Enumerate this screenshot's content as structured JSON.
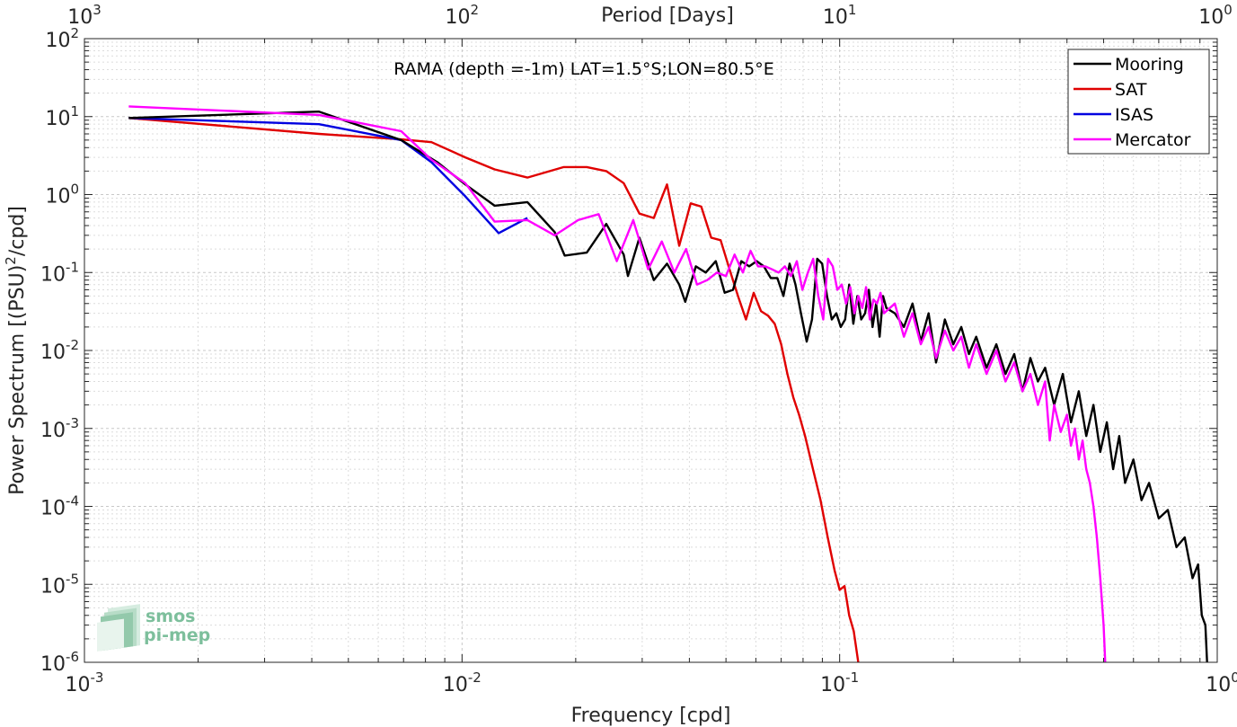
{
  "chart_data": {
    "type": "line",
    "xscale": "log",
    "yscale": "log",
    "xlim": [
      0.001,
      1
    ],
    "ylim": [
      1e-06,
      100
    ],
    "xlabel": "Frequency [cpd]",
    "ylabel": "Power Spectrum [(PSU)²/cpd]",
    "ylabel_base": "Power Spectrum [(PSU)",
    "ylabel_sup": "2",
    "ylabel_tail": "/cpd]",
    "x2label": "Period [Days]",
    "x2lim": [
      1000,
      1
    ],
    "annotation": "RAMA (depth =-1m) LAT=1.5°S;LON=80.5°E",
    "grid": true,
    "minor_grid": true,
    "legend_position": "top-right",
    "xticks": [
      {
        "value": 0.001,
        "base": "10",
        "exp": "-3"
      },
      {
        "value": 0.01,
        "base": "10",
        "exp": "-2"
      },
      {
        "value": 0.1,
        "base": "10",
        "exp": "-1"
      },
      {
        "value": 1,
        "base": "10",
        "exp": "0"
      }
    ],
    "x2ticks": [
      {
        "value": 1000,
        "base": "10",
        "exp": "3"
      },
      {
        "value": 100,
        "base": "10",
        "exp": "2"
      },
      {
        "value": 10,
        "base": "10",
        "exp": "1"
      },
      {
        "value": 1,
        "base": "10",
        "exp": "0"
      }
    ],
    "yticks": [
      {
        "value": 100,
        "base": "10",
        "exp": "2"
      },
      {
        "value": 10,
        "base": "10",
        "exp": "1"
      },
      {
        "value": 1,
        "base": "10",
        "exp": "0"
      },
      {
        "value": 0.1,
        "base": "10",
        "exp": "-1"
      },
      {
        "value": 0.01,
        "base": "10",
        "exp": "-2"
      },
      {
        "value": 0.001,
        "base": "10",
        "exp": "-3"
      },
      {
        "value": 0.0001,
        "base": "10",
        "exp": "-4"
      },
      {
        "value": 1e-05,
        "base": "10",
        "exp": "-5"
      },
      {
        "value": 1e-06,
        "base": "10",
        "exp": "-6"
      }
    ],
    "series": [
      {
        "name": "Mooring",
        "color": "#000000",
        "points": [
          [
            0.00131,
            9.6
          ],
          [
            0.00418,
            11.6
          ],
          [
            0.0069,
            5.0
          ],
          [
            0.0086,
            2.6
          ],
          [
            0.0102,
            1.35
          ],
          [
            0.0122,
            0.72
          ],
          [
            0.0149,
            0.8
          ],
          [
            0.0176,
            0.33
          ],
          [
            0.0187,
            0.165
          ],
          [
            0.0214,
            0.18
          ],
          [
            0.0241,
            0.42
          ],
          [
            0.0268,
            0.17
          ],
          [
            0.0275,
            0.09
          ],
          [
            0.0295,
            0.28
          ],
          [
            0.0322,
            0.08
          ],
          [
            0.0349,
            0.13
          ],
          [
            0.0376,
            0.07
          ],
          [
            0.039,
            0.042
          ],
          [
            0.0416,
            0.12
          ],
          [
            0.0442,
            0.1
          ],
          [
            0.047,
            0.14
          ],
          [
            0.0496,
            0.055
          ],
          [
            0.0522,
            0.06
          ],
          [
            0.0549,
            0.14
          ],
          [
            0.0576,
            0.12
          ],
          [
            0.0603,
            0.14
          ],
          [
            0.063,
            0.12
          ],
          [
            0.0657,
            0.085
          ],
          [
            0.0684,
            0.085
          ],
          [
            0.071,
            0.05
          ],
          [
            0.0737,
            0.13
          ],
          [
            0.0764,
            0.07
          ],
          [
            0.079,
            0.03
          ],
          [
            0.0818,
            0.013
          ],
          [
            0.0845,
            0.025
          ],
          [
            0.0872,
            0.15
          ],
          [
            0.0899,
            0.13
          ],
          [
            0.0926,
            0.05
          ],
          [
            0.0953,
            0.025
          ],
          [
            0.098,
            0.03
          ],
          [
            0.1007,
            0.02
          ],
          [
            0.1034,
            0.025
          ],
          [
            0.106,
            0.07
          ],
          [
            0.1087,
            0.022
          ],
          [
            0.1114,
            0.05
          ],
          [
            0.1141,
            0.025
          ],
          [
            0.1168,
            0.03
          ],
          [
            0.1195,
            0.06
          ],
          [
            0.1222,
            0.02
          ],
          [
            0.1249,
            0.04
          ],
          [
            0.1276,
            0.015
          ],
          [
            0.1303,
            0.05
          ],
          [
            0.133,
            0.035
          ],
          [
            0.14,
            0.03
          ],
          [
            0.148,
            0.02
          ],
          [
            0.156,
            0.04
          ],
          [
            0.164,
            0.013
          ],
          [
            0.172,
            0.03
          ],
          [
            0.18,
            0.007
          ],
          [
            0.19,
            0.025
          ],
          [
            0.2,
            0.012
          ],
          [
            0.21,
            0.02
          ],
          [
            0.22,
            0.009
          ],
          [
            0.23,
            0.015
          ],
          [
            0.245,
            0.006
          ],
          [
            0.26,
            0.012
          ],
          [
            0.275,
            0.005
          ],
          [
            0.29,
            0.009
          ],
          [
            0.305,
            0.003
          ],
          [
            0.32,
            0.008
          ],
          [
            0.335,
            0.004
          ],
          [
            0.35,
            0.006
          ],
          [
            0.37,
            0.002
          ],
          [
            0.39,
            0.005
          ],
          [
            0.41,
            0.0012
          ],
          [
            0.43,
            0.003
          ],
          [
            0.45,
            0.0008
          ],
          [
            0.47,
            0.002
          ],
          [
            0.49,
            0.0005
          ],
          [
            0.51,
            0.0012
          ],
          [
            0.53,
            0.0003
          ],
          [
            0.55,
            0.0008
          ],
          [
            0.57,
            0.0002
          ],
          [
            0.6,
            0.0004
          ],
          [
            0.63,
            0.00012
          ],
          [
            0.66,
            0.0002
          ],
          [
            0.7,
            7e-05
          ],
          [
            0.74,
            9e-05
          ],
          [
            0.78,
            3e-05
          ],
          [
            0.82,
            4e-05
          ],
          [
            0.86,
            1.2e-05
          ],
          [
            0.89,
            1.8e-05
          ],
          [
            0.91,
            4e-06
          ],
          [
            0.93,
            3e-06
          ],
          [
            0.94,
            1e-06
          ]
        ]
      },
      {
        "name": "SAT",
        "color": "#e00000",
        "points": [
          [
            0.00131,
            9.6
          ],
          [
            0.00418,
            6.0
          ],
          [
            0.0069,
            5.1
          ],
          [
            0.0083,
            4.7
          ],
          [
            0.0102,
            3.0
          ],
          [
            0.0122,
            2.1
          ],
          [
            0.0149,
            1.65
          ],
          [
            0.0186,
            2.25
          ],
          [
            0.0214,
            2.25
          ],
          [
            0.0241,
            2.0
          ],
          [
            0.0268,
            1.4
          ],
          [
            0.0295,
            0.57
          ],
          [
            0.0322,
            0.5
          ],
          [
            0.0349,
            1.35
          ],
          [
            0.0376,
            0.22
          ],
          [
            0.0403,
            0.77
          ],
          [
            0.043,
            0.7
          ],
          [
            0.0457,
            0.28
          ],
          [
            0.0484,
            0.26
          ],
          [
            0.0511,
            0.11
          ],
          [
            0.0538,
            0.05
          ],
          [
            0.0565,
            0.025
          ],
          [
            0.0592,
            0.055
          ],
          [
            0.0619,
            0.032
          ],
          [
            0.0646,
            0.028
          ],
          [
            0.0673,
            0.022
          ],
          [
            0.07,
            0.012
          ],
          [
            0.0727,
            0.005
          ],
          [
            0.0754,
            0.0025
          ],
          [
            0.0781,
            0.0015
          ],
          [
            0.081,
            0.0008
          ],
          [
            0.085,
            0.0003
          ],
          [
            0.089,
            0.00012
          ],
          [
            0.093,
            4e-05
          ],
          [
            0.097,
            1.5e-05
          ],
          [
            0.1,
            8.5e-06
          ],
          [
            0.103,
            9.5e-06
          ],
          [
            0.106,
            4e-06
          ],
          [
            0.109,
            2.5e-06
          ],
          [
            0.112,
            1e-06
          ]
        ]
      },
      {
        "name": "ISAS",
        "color": "#0000e0",
        "points": [
          [
            0.00131,
            9.6
          ],
          [
            0.00418,
            8.0
          ],
          [
            0.0069,
            5.0
          ],
          [
            0.0083,
            2.6
          ],
          [
            0.0102,
            0.95
          ],
          [
            0.0125,
            0.32
          ],
          [
            0.0149,
            0.5
          ]
        ]
      },
      {
        "name": "Mercator",
        "color": "#ff00ff",
        "points": [
          [
            0.00131,
            13.5
          ],
          [
            0.00418,
            10.5
          ],
          [
            0.0069,
            6.5
          ],
          [
            0.0083,
            2.8
          ],
          [
            0.0102,
            1.4
          ],
          [
            0.0122,
            0.45
          ],
          [
            0.0149,
            0.47
          ],
          [
            0.0176,
            0.3
          ],
          [
            0.0203,
            0.47
          ],
          [
            0.023,
            0.56
          ],
          [
            0.0257,
            0.14
          ],
          [
            0.0284,
            0.47
          ],
          [
            0.0311,
            0.11
          ],
          [
            0.0338,
            0.25
          ],
          [
            0.0365,
            0.1
          ],
          [
            0.0392,
            0.2
          ],
          [
            0.0419,
            0.07
          ],
          [
            0.0446,
            0.08
          ],
          [
            0.0473,
            0.1
          ],
          [
            0.05,
            0.09
          ],
          [
            0.0527,
            0.17
          ],
          [
            0.0554,
            0.1
          ],
          [
            0.0581,
            0.19
          ],
          [
            0.0608,
            0.12
          ],
          [
            0.0635,
            0.12
          ],
          [
            0.0662,
            0.11
          ],
          [
            0.0689,
            0.1
          ],
          [
            0.0716,
            0.12
          ],
          [
            0.0743,
            0.09
          ],
          [
            0.077,
            0.14
          ],
          [
            0.0797,
            0.06
          ],
          [
            0.0824,
            0.1
          ],
          [
            0.0851,
            0.15
          ],
          [
            0.0878,
            0.05
          ],
          [
            0.0905,
            0.025
          ],
          [
            0.0932,
            0.15
          ],
          [
            0.0959,
            0.12
          ],
          [
            0.0986,
            0.06
          ],
          [
            0.1013,
            0.07
          ],
          [
            0.104,
            0.04
          ],
          [
            0.1067,
            0.065
          ],
          [
            0.1094,
            0.03
          ],
          [
            0.1121,
            0.05
          ],
          [
            0.1148,
            0.035
          ],
          [
            0.1175,
            0.065
          ],
          [
            0.1202,
            0.025
          ],
          [
            0.1229,
            0.045
          ],
          [
            0.1256,
            0.04
          ],
          [
            0.1283,
            0.055
          ],
          [
            0.131,
            0.03
          ],
          [
            0.14,
            0.04
          ],
          [
            0.148,
            0.015
          ],
          [
            0.156,
            0.03
          ],
          [
            0.164,
            0.012
          ],
          [
            0.172,
            0.02
          ],
          [
            0.18,
            0.008
          ],
          [
            0.19,
            0.018
          ],
          [
            0.2,
            0.01
          ],
          [
            0.21,
            0.015
          ],
          [
            0.22,
            0.006
          ],
          [
            0.23,
            0.012
          ],
          [
            0.245,
            0.005
          ],
          [
            0.26,
            0.01
          ],
          [
            0.275,
            0.004
          ],
          [
            0.29,
            0.007
          ],
          [
            0.305,
            0.003
          ],
          [
            0.32,
            0.005
          ],
          [
            0.335,
            0.002
          ],
          [
            0.35,
            0.004
          ],
          [
            0.36,
            0.0007
          ],
          [
            0.37,
            0.002
          ],
          [
            0.385,
            0.0009
          ],
          [
            0.4,
            0.0015
          ],
          [
            0.41,
            0.0006
          ],
          [
            0.42,
            0.001
          ],
          [
            0.43,
            0.0004
          ],
          [
            0.44,
            0.0007
          ],
          [
            0.45,
            0.0003
          ],
          [
            0.46,
            0.0002
          ],
          [
            0.47,
            0.0001
          ],
          [
            0.48,
            4e-05
          ],
          [
            0.49,
            1.2e-05
          ],
          [
            0.5,
            3e-06
          ],
          [
            0.505,
            1e-06
          ]
        ]
      }
    ]
  },
  "logo": {
    "line1": "smos",
    "line2": "pi-mep"
  }
}
